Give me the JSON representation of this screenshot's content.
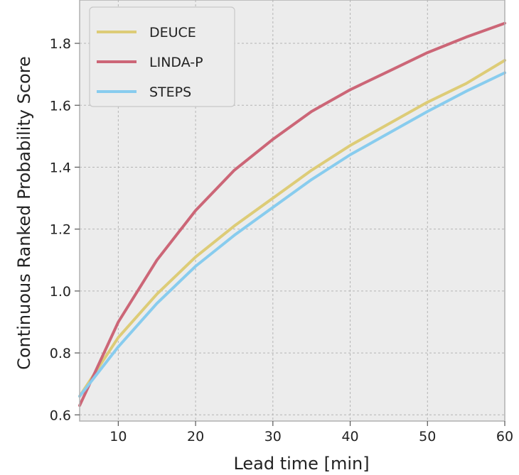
{
  "chart_data": {
    "type": "line",
    "title": "",
    "xlabel": "Lead time [min]",
    "ylabel": "Continuous Ranked Probability Score",
    "xlim": [
      5,
      60
    ],
    "ylim": [
      0.58,
      1.94
    ],
    "xticks": [
      10,
      20,
      30,
      40,
      50,
      60
    ],
    "yticks": [
      0.6,
      0.8,
      1.0,
      1.2,
      1.4,
      1.6,
      1.8
    ],
    "xtick_labels": [
      "10",
      "20",
      "30",
      "40",
      "50",
      "60"
    ],
    "ytick_labels": [
      "0.6",
      "0.8",
      "1.0",
      "1.2",
      "1.4",
      "1.6",
      "1.8"
    ],
    "grid": true,
    "legend_position": "top-left",
    "background": "#ececec",
    "x": [
      5,
      10,
      15,
      20,
      25,
      30,
      35,
      40,
      45,
      50,
      55,
      60
    ],
    "series": [
      {
        "name": "DEUCE",
        "color": "#ddcc77",
        "values": [
          0.66,
          0.85,
          0.99,
          1.11,
          1.21,
          1.3,
          1.39,
          1.47,
          1.54,
          1.61,
          1.67,
          1.745
        ]
      },
      {
        "name": "LINDA-P",
        "color": "#cc6677",
        "values": [
          0.63,
          0.9,
          1.1,
          1.26,
          1.39,
          1.49,
          1.58,
          1.65,
          1.71,
          1.77,
          1.82,
          1.865
        ]
      },
      {
        "name": "STEPS",
        "color": "#88ccee",
        "values": [
          0.66,
          0.82,
          0.96,
          1.08,
          1.18,
          1.27,
          1.36,
          1.44,
          1.51,
          1.58,
          1.645,
          1.705
        ]
      }
    ]
  }
}
